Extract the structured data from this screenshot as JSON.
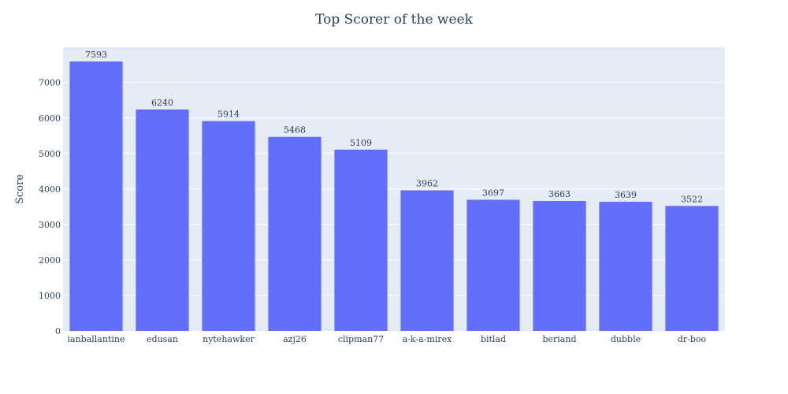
{
  "colors": {
    "bar": "#636efa",
    "plot_bg": "#e5ecf6",
    "grid": "#ffffff",
    "text": "#2a3f5f",
    "page_bg": "#ffffff"
  },
  "chart_data": {
    "type": "bar",
    "title": "Top Scorer of the week",
    "xlabel": "",
    "ylabel": "Score",
    "categories": [
      "ianballantine",
      "edusan",
      "nytehawker",
      "azj26",
      "clipman77",
      "a-k-a-mirex",
      "bitlad",
      "beriand",
      "dubble",
      "dr-boo"
    ],
    "values": [
      7593,
      6240,
      5914,
      5468,
      5109,
      3962,
      3697,
      3663,
      3639,
      3522
    ],
    "data_labels": [
      "7593",
      "6240",
      "5914",
      "5468",
      "5109",
      "3962",
      "3697",
      "3663",
      "3639",
      "3522"
    ],
    "ylim": [
      0,
      7993
    ],
    "yticks": [
      0,
      1000,
      2000,
      3000,
      4000,
      5000,
      6000,
      7000
    ],
    "ytick_labels": [
      "0",
      "1000",
      "2000",
      "3000",
      "4000",
      "5000",
      "6000",
      "7000"
    ],
    "grid": true,
    "legend": "none"
  }
}
